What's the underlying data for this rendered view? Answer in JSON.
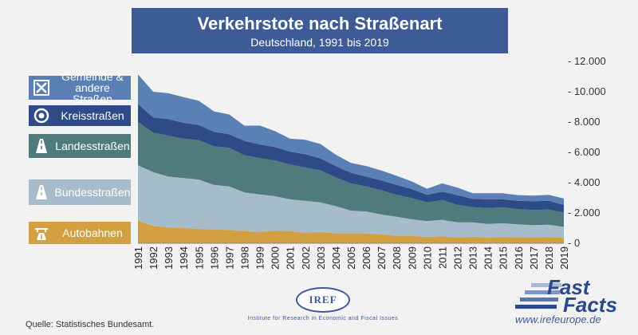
{
  "title": "Verkehrstote nach Straßenart",
  "subtitle": "Deutschland, 1991 bis 2019",
  "source": "Quelle: Statistisches Bundesamt.",
  "logo": {
    "name": "IREF",
    "tagline": "Institute for Research in Economic and Fiscal Issues"
  },
  "brand": {
    "line1": "Fast",
    "line2": "Facts",
    "url": "www.irefeurope.de"
  },
  "colors": {
    "title_bg": "#3d5c97",
    "page_bg": "#f2f2f2"
  },
  "categories": [
    {
      "label": "Gemeinde & andere Straßen",
      "color": "#5a80b5",
      "icon": "municipal-road-icon"
    },
    {
      "label": "Kreisstraßen",
      "color": "#2e4b88",
      "icon": "district-road-icon"
    },
    {
      "label": "Landesstraßen",
      "color": "#4f7b7c",
      "icon": "state-road-icon"
    },
    {
      "label": "Bundesstraßen",
      "color": "#a6bccb",
      "icon": "federal-road-icon"
    },
    {
      "label": "Autobahnen",
      "color": "#d2a040",
      "icon": "motorway-icon"
    }
  ],
  "chart_data": {
    "type": "area",
    "stacked": true,
    "x": [
      1991,
      1992,
      1993,
      1994,
      1995,
      1996,
      1997,
      1998,
      1999,
      2000,
      2001,
      2002,
      2003,
      2004,
      2005,
      2006,
      2007,
      2008,
      2009,
      2010,
      2011,
      2012,
      2013,
      2014,
      2015,
      2016,
      2017,
      2018,
      2019
    ],
    "ylim": [
      0,
      12000
    ],
    "yticks": [
      "0",
      "2.000",
      "4.000",
      "6.000",
      "8.000",
      "10.000",
      "12.000"
    ],
    "series": [
      {
        "name": "Autobahnen",
        "color": "#d2a040",
        "values": [
          1500,
          1150,
          1050,
          1000,
          950,
          900,
          880,
          800,
          750,
          850,
          800,
          700,
          750,
          650,
          650,
          650,
          600,
          500,
          480,
          420,
          450,
          380,
          430,
          380,
          420,
          400,
          400,
          420,
          360
        ]
      },
      {
        "name": "Bundesstraßen",
        "color": "#a6bccb",
        "values": [
          3650,
          3550,
          3350,
          3300,
          3250,
          2950,
          2870,
          2560,
          2470,
          2260,
          2100,
          2100,
          1950,
          1800,
          1500,
          1450,
          1300,
          1250,
          1100,
          1050,
          1100,
          1000,
          950,
          900,
          900,
          850,
          800,
          800,
          720
        ]
      },
      {
        "name": "Landesstraßen",
        "color": "#4f7b7c",
        "values": [
          2850,
          2600,
          2700,
          2600,
          2600,
          2550,
          2550,
          2450,
          2400,
          2350,
          2300,
          2200,
          2100,
          1900,
          1800,
          1650,
          1600,
          1450,
          1400,
          1230,
          1300,
          1150,
          1000,
          1050,
          1050,
          1000,
          1000,
          1000,
          950
        ]
      },
      {
        "name": "Kreisstraßen",
        "color": "#2e4b88",
        "values": [
          1200,
          1000,
          1100,
          1050,
          1000,
          950,
          900,
          950,
          900,
          900,
          850,
          880,
          800,
          750,
          700,
          650,
          650,
          650,
          600,
          500,
          550,
          650,
          550,
          570,
          530,
          550,
          580,
          580,
          500
        ]
      },
      {
        "name": "Gemeinde & andere Straßen",
        "color": "#5a80b5",
        "values": [
          1950,
          1700,
          1700,
          1700,
          1600,
          1350,
          1300,
          1000,
          1250,
          1050,
          850,
          950,
          950,
          750,
          650,
          700,
          650,
          600,
          500,
          400,
          550,
          500,
          370,
          400,
          400,
          380,
          370,
          400,
          420
        ]
      }
    ]
  }
}
